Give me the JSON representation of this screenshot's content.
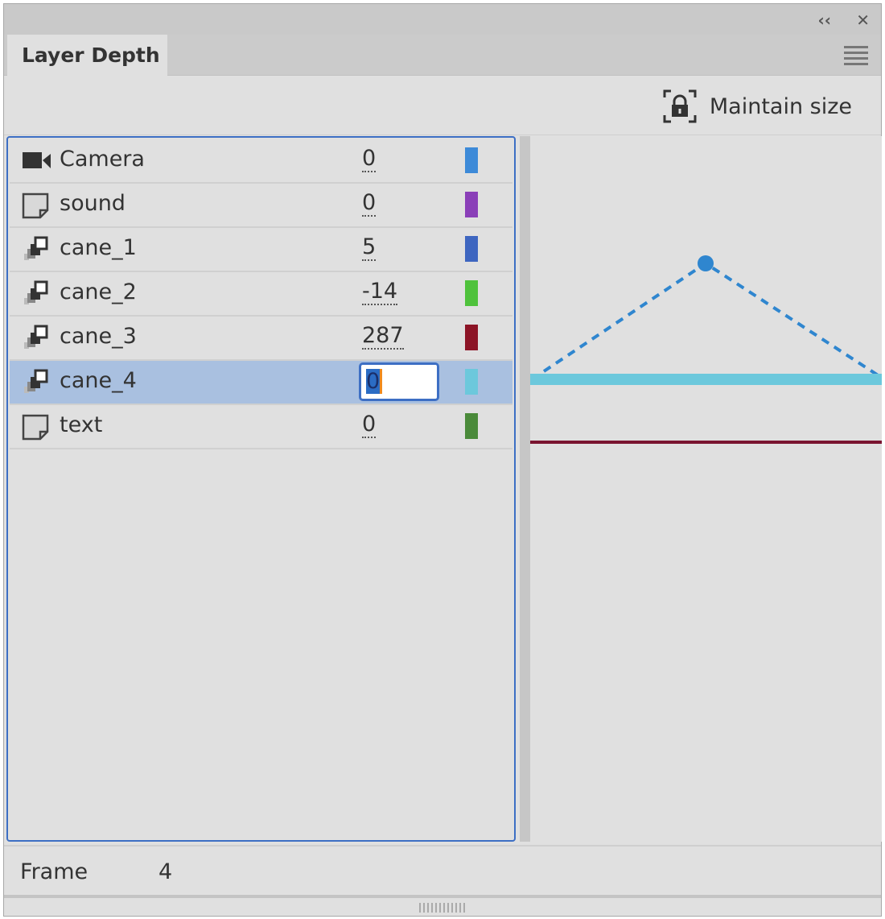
{
  "window": {
    "collapse_label": "‹‹",
    "close_label": "✕"
  },
  "tab": {
    "label": "Layer Depth"
  },
  "toolbar": {
    "maintain_size_label": "Maintain size",
    "icon": "lock-bracket-icon"
  },
  "layers": [
    {
      "name": "Camera",
      "depth": "0",
      "icon": "camera-icon",
      "color": "#3d8ad8",
      "selected": false
    },
    {
      "name": "sound",
      "depth": "0",
      "icon": "layer-icon",
      "color": "#8a3fb8",
      "selected": false
    },
    {
      "name": "cane_1",
      "depth": "5",
      "icon": "motion-tween-icon",
      "color": "#3e66c0",
      "selected": false
    },
    {
      "name": "cane_2",
      "depth": "-14",
      "icon": "motion-tween-icon",
      "color": "#4fc23c",
      "selected": false
    },
    {
      "name": "cane_3",
      "depth": "287",
      "icon": "motion-tween-icon",
      "color": "#8c1426",
      "selected": false
    },
    {
      "name": "cane_4",
      "depth": "0",
      "icon": "motion-tween-icon",
      "color": "#6cc8dc",
      "selected": true
    },
    {
      "name": "text",
      "depth": "0",
      "icon": "layer-icon",
      "color": "#4a8a3a",
      "selected": false
    }
  ],
  "footer": {
    "frame_label": "Frame",
    "frame_value": "4"
  }
}
